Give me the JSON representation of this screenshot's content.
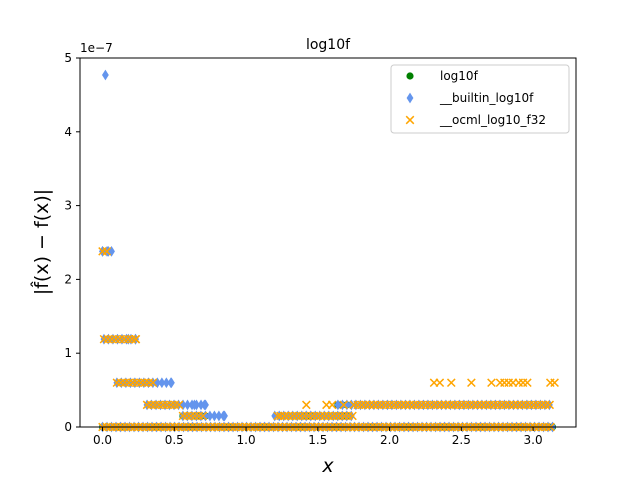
{
  "chart_data": {
    "type": "scatter",
    "title": "log10f",
    "xlabel": "x",
    "ylabel": "|f̂(x) − f(x)|",
    "y_scale_label": "1e−7",
    "xlim": [
      -0.157,
      3.299
    ],
    "ylim": [
      0,
      5
    ],
    "y_multiplier": 1e-07,
    "x_ticks": [
      0.0,
      0.5,
      1.0,
      1.5,
      2.0,
      2.5,
      3.0
    ],
    "x_tick_labels": [
      "0.0",
      "0.5",
      "1.0",
      "1.5",
      "2.0",
      "2.5",
      "3.0"
    ],
    "y_ticks": [
      0,
      1,
      2,
      3,
      4,
      5
    ],
    "y_tick_labels": [
      "0",
      "1",
      "2",
      "3",
      "4",
      "5"
    ],
    "grid": false,
    "legend_position": "top-right",
    "series": [
      {
        "name": "log10f",
        "marker": "circle",
        "color": "#008000",
        "segments": [
          {
            "x": [
              0.0,
              3.14
            ],
            "y": 0.0
          },
          {
            "x": [
              0.56,
              0.72
            ],
            "y": 0.15
          },
          {
            "x": [
              1.24,
              1.72
            ],
            "y": 0.15
          },
          {
            "x": [
              1.64,
              1.72
            ],
            "y": 0.3
          }
        ],
        "points": []
      },
      {
        "name": "__builtin_log10f",
        "marker": "diamond",
        "color": "#6495ed",
        "segments": [
          {
            "x": [
              0.0,
              3.14
            ],
            "y": 0.0
          },
          {
            "x": [
              0.0,
              0.07
            ],
            "y": 2.38
          },
          {
            "x": [
              0.01,
              0.24
            ],
            "y": 1.19
          },
          {
            "x": [
              0.1,
              0.48
            ],
            "y": 0.6
          },
          {
            "x": [
              0.31,
              0.72
            ],
            "y": 0.3
          },
          {
            "x": [
              0.56,
              0.85
            ],
            "y": 0.15
          },
          {
            "x": [
              1.2,
              1.75
            ],
            "y": 0.15
          },
          {
            "x": [
              1.64,
              3.14
            ],
            "y": 0.3
          }
        ],
        "points": [
          {
            "x": 0.02,
            "y": 4.77
          },
          {
            "x": 0.0,
            "y": 2.38
          },
          {
            "x": 0.04,
            "y": 2.38
          },
          {
            "x": 0.18,
            "y": 1.19
          },
          {
            "x": 0.23,
            "y": 1.19
          },
          {
            "x": 0.48,
            "y": 0.6
          },
          {
            "x": 0.64,
            "y": 0.3
          },
          {
            "x": 0.71,
            "y": 0.3
          },
          {
            "x": 0.85,
            "y": 0.15
          }
        ]
      },
      {
        "name": "__ocml_log10_f32",
        "marker": "x",
        "color": "#ffa500",
        "segments": [
          {
            "x": [
              0.0,
              3.14
            ],
            "y": 0.0
          },
          {
            "x": [
              0.01,
              0.24
            ],
            "y": 1.19
          },
          {
            "x": [
              0.1,
              0.36
            ],
            "y": 0.6
          },
          {
            "x": [
              0.31,
              0.55
            ],
            "y": 0.3
          },
          {
            "x": [
              0.56,
              0.72
            ],
            "y": 0.15
          },
          {
            "x": [
              1.24,
              1.75
            ],
            "y": 0.15
          },
          {
            "x": [
              1.75,
              3.14
            ],
            "y": 0.3
          }
        ],
        "points": [
          {
            "x": 0.0,
            "y": 2.38
          },
          {
            "x": 0.03,
            "y": 2.38
          },
          {
            "x": 0.23,
            "y": 1.19
          },
          {
            "x": 1.22,
            "y": 0.15
          },
          {
            "x": 1.27,
            "y": 0.15
          },
          {
            "x": 1.42,
            "y": 0.3
          },
          {
            "x": 1.56,
            "y": 0.3
          },
          {
            "x": 1.6,
            "y": 0.3
          },
          {
            "x": 1.68,
            "y": 0.3
          },
          {
            "x": 2.31,
            "y": 0.6
          },
          {
            "x": 2.35,
            "y": 0.6
          },
          {
            "x": 2.43,
            "y": 0.6
          },
          {
            "x": 2.57,
            "y": 0.6
          },
          {
            "x": 2.71,
            "y": 0.6
          },
          {
            "x": 2.77,
            "y": 0.6
          },
          {
            "x": 2.8,
            "y": 0.6
          },
          {
            "x": 2.83,
            "y": 0.6
          },
          {
            "x": 2.86,
            "y": 0.6
          },
          {
            "x": 2.9,
            "y": 0.6
          },
          {
            "x": 2.93,
            "y": 0.6
          },
          {
            "x": 2.96,
            "y": 0.6
          },
          {
            "x": 3.12,
            "y": 0.6
          },
          {
            "x": 3.15,
            "y": 0.6
          }
        ]
      }
    ]
  }
}
